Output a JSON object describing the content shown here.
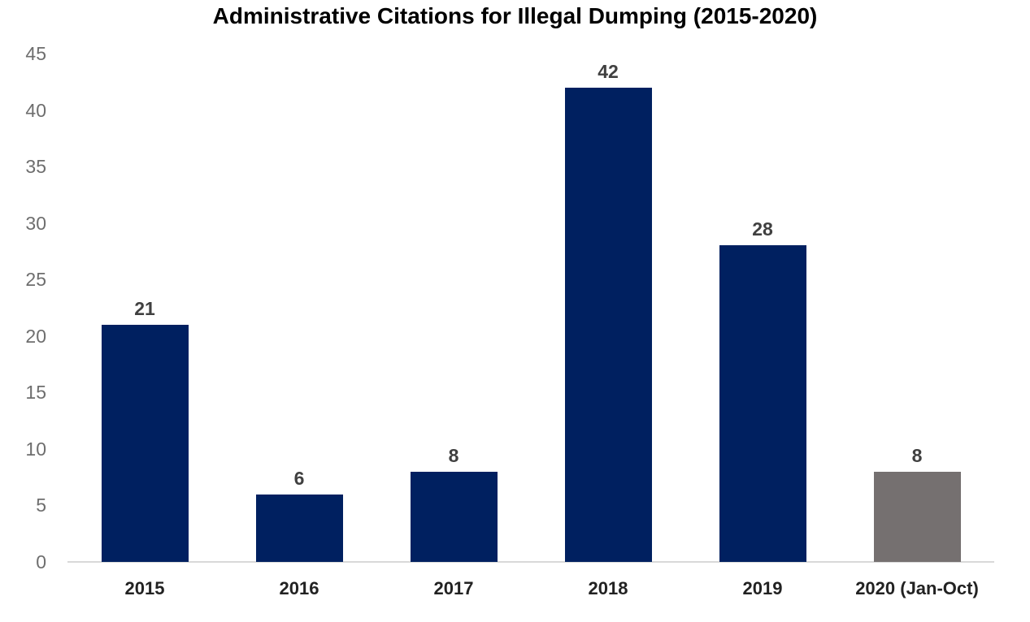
{
  "title": "Administrative Citations for Illegal Dumping (2015-2020)",
  "chart_data": {
    "type": "bar",
    "title": "Administrative Citations for Illegal Dumping (2015-2020)",
    "categories": [
      "2015",
      "2016",
      "2017",
      "2018",
      "2019",
      "2020 (Jan-Oct)"
    ],
    "values": [
      21,
      6,
      8,
      42,
      28,
      8
    ],
    "bar_colors": [
      "#002060",
      "#002060",
      "#002060",
      "#002060",
      "#002060",
      "#757070"
    ],
    "yticks": [
      0,
      5,
      10,
      15,
      20,
      25,
      30,
      35,
      40,
      45
    ],
    "ylim": [
      0,
      45
    ],
    "xlabel": "",
    "ylabel": "",
    "grid": false,
    "legend": "none",
    "data_labels": true
  },
  "colors": {
    "background": "#ffffff",
    "axis_line": "#d9d9d9",
    "ytick_text": "#6e6e6e",
    "xtick_text": "#222222",
    "value_label_text": "#404040",
    "title_text": "#000000",
    "navy_bar": "#002060",
    "gray_bar": "#757070"
  }
}
